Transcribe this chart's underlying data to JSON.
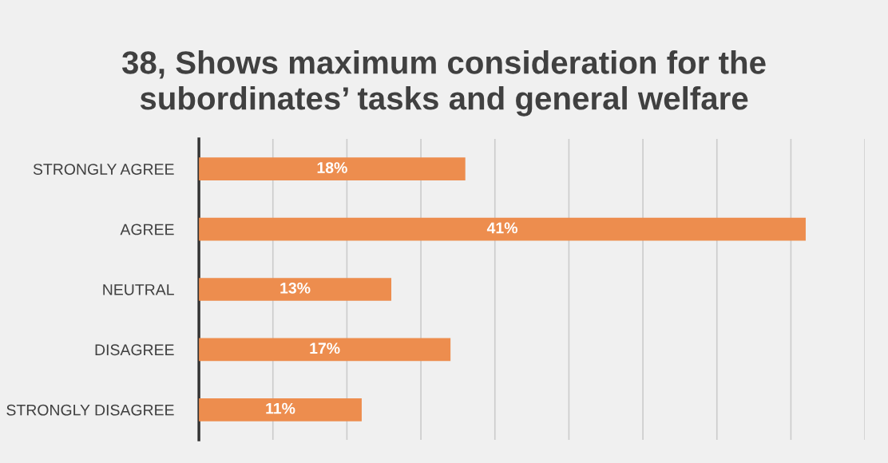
{
  "chart_data": {
    "type": "bar",
    "orientation": "horizontal",
    "title": "38, Shows maximum consideration for the\nsubordinates’ tasks and general welfare",
    "categories": [
      "STRONGLY AGREE",
      "AGREE",
      "NEUTRAL",
      "DISAGREE",
      "STRONGLY DISAGREE"
    ],
    "values": [
      18,
      41,
      13,
      17,
      11
    ],
    "value_labels": [
      "18%",
      "41%",
      "13%",
      "17%",
      "11%"
    ],
    "color": "#ed8d4e",
    "xlim": [
      0,
      45
    ],
    "xticks": [
      {
        "value": 0,
        "label": null
      },
      {
        "value": 5,
        "label": null
      },
      {
        "value": 10,
        "label": null
      },
      {
        "value": 15,
        "label": null
      },
      {
        "value": 20,
        "label": null
      },
      {
        "value": 25,
        "label": null
      },
      {
        "value": 30,
        "label": null
      },
      {
        "value": 35,
        "label": null
      },
      {
        "value": 40,
        "label": null
      },
      {
        "value": 45,
        "label": null
      }
    ],
    "tick_labels": "y",
    "grid": "x",
    "legend": false
  }
}
